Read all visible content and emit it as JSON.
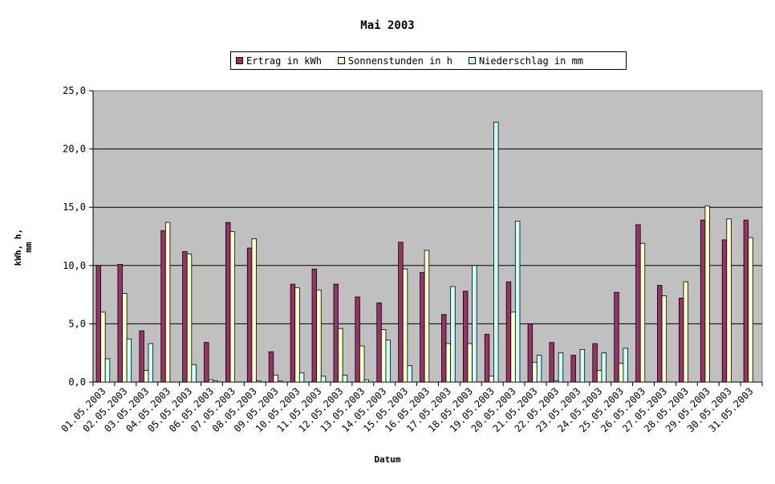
{
  "chart_data": {
    "type": "bar",
    "title": "Mai 2003",
    "xlabel": "Datum",
    "ylabel": "kWh, h, mm",
    "ylim": [
      0,
      25
    ],
    "yticks": [
      "0,0",
      "5,0",
      "10,0",
      "15,0",
      "20,0",
      "25,0"
    ],
    "grid": true,
    "legend_position": "top",
    "categories": [
      "01.05.2003",
      "02.05.2003",
      "03.05.2003",
      "04.05.2003",
      "05.05.2003",
      "06.05.2003",
      "07.05.2003",
      "08.05.2003",
      "09.05.2003",
      "10.05.2003",
      "11.05.2003",
      "12.05.2003",
      "13.05.2003",
      "14.05.2003",
      "15.05.2003",
      "16.05.2003",
      "17.05.2003",
      "18.05.2003",
      "19.05.2003",
      "20.05.2003",
      "21.05.2003",
      "22.05.2003",
      "23.05.2003",
      "24.05.2003",
      "25.05.2003",
      "26.05.2003",
      "27.05.2003",
      "28.05.2003",
      "29.05.2003",
      "30.05.2003",
      "31.05.2003"
    ],
    "series": [
      {
        "name": "Ertrag in kWh",
        "color": "#993366",
        "values": [
          10.0,
          10.1,
          4.4,
          13.0,
          11.2,
          3.4,
          13.7,
          11.5,
          2.6,
          8.4,
          9.7,
          8.4,
          7.3,
          6.8,
          12.0,
          9.4,
          5.8,
          7.8,
          4.1,
          8.6,
          5.0,
          3.4,
          2.3,
          3.3,
          7.7,
          13.5,
          8.3,
          7.2,
          13.9,
          12.2,
          13.9
        ]
      },
      {
        "name": "Sonnenstunden in h",
        "color": "#ffffcc",
        "values": [
          6.0,
          7.6,
          1.0,
          13.7,
          11.0,
          0.2,
          12.9,
          12.3,
          0.6,
          8.1,
          7.9,
          4.6,
          3.1,
          4.5,
          9.7,
          11.3,
          3.3,
          3.3,
          0.5,
          6.0,
          1.7,
          0.1,
          0.0,
          1.0,
          1.6,
          11.9,
          7.4,
          8.6,
          15.1,
          14.0,
          12.4
        ]
      },
      {
        "name": "Niederschlag in mm",
        "color": "#ccffff",
        "values": [
          2.0,
          3.7,
          3.3,
          0.0,
          1.5,
          0.1,
          0.0,
          0.1,
          0.1,
          0.8,
          0.5,
          0.6,
          0.2,
          3.6,
          1.4,
          0.0,
          8.2,
          10.0,
          22.3,
          13.8,
          2.3,
          2.5,
          2.8,
          2.5,
          2.9,
          0.0,
          0.0,
          0.0,
          0.0,
          0.0,
          0.0
        ]
      }
    ]
  },
  "colors": {
    "plot_bg": "#c0c0c0",
    "grid": "#000000"
  }
}
